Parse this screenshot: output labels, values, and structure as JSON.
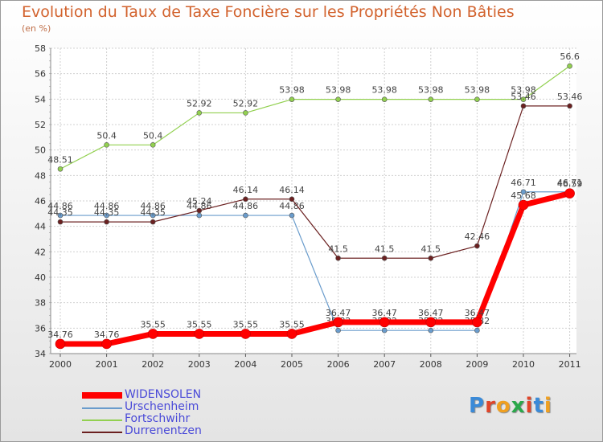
{
  "title": "Evolution du Taux de Taxe Foncière sur les Propriétés Non Bâties",
  "unit": "(en %)",
  "chart_data": {
    "type": "line",
    "title": "Evolution du Taux de Taxe Foncière sur les Propriétés Non Bâties",
    "ylabel": "(en %)",
    "x": [
      "2000",
      "2001",
      "2002",
      "2003",
      "2004",
      "2005",
      "2006",
      "2007",
      "2008",
      "2009",
      "2010",
      "2011"
    ],
    "ylim": [
      34,
      58
    ],
    "yticks": [
      34,
      36,
      38,
      40,
      42,
      44,
      46,
      48,
      50,
      52,
      54,
      56,
      58
    ],
    "grid": true,
    "legend": "bottom-left",
    "series": [
      {
        "name": "Urschenheim",
        "color": "#6a9ccc",
        "width": 1.2,
        "values": [
          44.86,
          44.86,
          44.86,
          44.86,
          44.86,
          44.86,
          35.82,
          35.82,
          35.82,
          35.82,
          46.71,
          46.71
        ],
        "labels": [
          "44.86",
          "44.86",
          "44.86",
          "44.86",
          "44.86",
          "44.86",
          "35.82",
          "35.82",
          "35.82",
          "35.82",
          "46.71",
          "46.71"
        ]
      },
      {
        "name": "Fortschwihr",
        "color": "#92d050",
        "width": 1.2,
        "values": [
          48.51,
          50.4,
          50.4,
          52.92,
          52.92,
          53.98,
          53.98,
          53.98,
          53.98,
          53.98,
          53.98,
          56.6
        ],
        "labels": [
          "48.51",
          "50.4",
          "50.4",
          "52.92",
          "52.92",
          "53.98",
          "53.98",
          "53.98",
          "53.98",
          "53.98",
          "53.98",
          "56.6"
        ]
      },
      {
        "name": "Durrenentzen",
        "color": "#6b2020",
        "width": 1.2,
        "values": [
          44.35,
          44.35,
          44.35,
          45.24,
          46.14,
          46.14,
          41.5,
          41.5,
          41.5,
          42.46,
          53.46,
          53.46
        ],
        "labels": [
          "44.35",
          "44.35",
          "44.35",
          "45.24",
          "46.14",
          "46.14",
          "41.5",
          "41.5",
          "41.5",
          "42.46",
          "53.46",
          "53.46"
        ]
      },
      {
        "name": "WIDENSOLEN",
        "color": "#ff0000",
        "width": 7,
        "values": [
          34.76,
          34.76,
          35.55,
          35.55,
          35.55,
          35.55,
          36.47,
          36.47,
          36.47,
          36.47,
          45.68,
          46.59
        ],
        "labels": [
          "34.76",
          "34.76",
          "35.55",
          "35.55",
          "35.55",
          "35.55",
          "36.47",
          "36.47",
          "36.47",
          "36.47",
          "45.68",
          "46.59"
        ]
      }
    ]
  },
  "legend_items": [
    "WIDENSOLEN",
    "Urschenheim",
    "Fortschwihr",
    "Durrenentzen"
  ],
  "logo": {
    "text": "Proxiti",
    "colors": [
      "#3a8ad8",
      "#e0452a",
      "#f0a020",
      "#2aa84a",
      "#e0452a",
      "#3a8ad8",
      "#f0a020"
    ]
  }
}
